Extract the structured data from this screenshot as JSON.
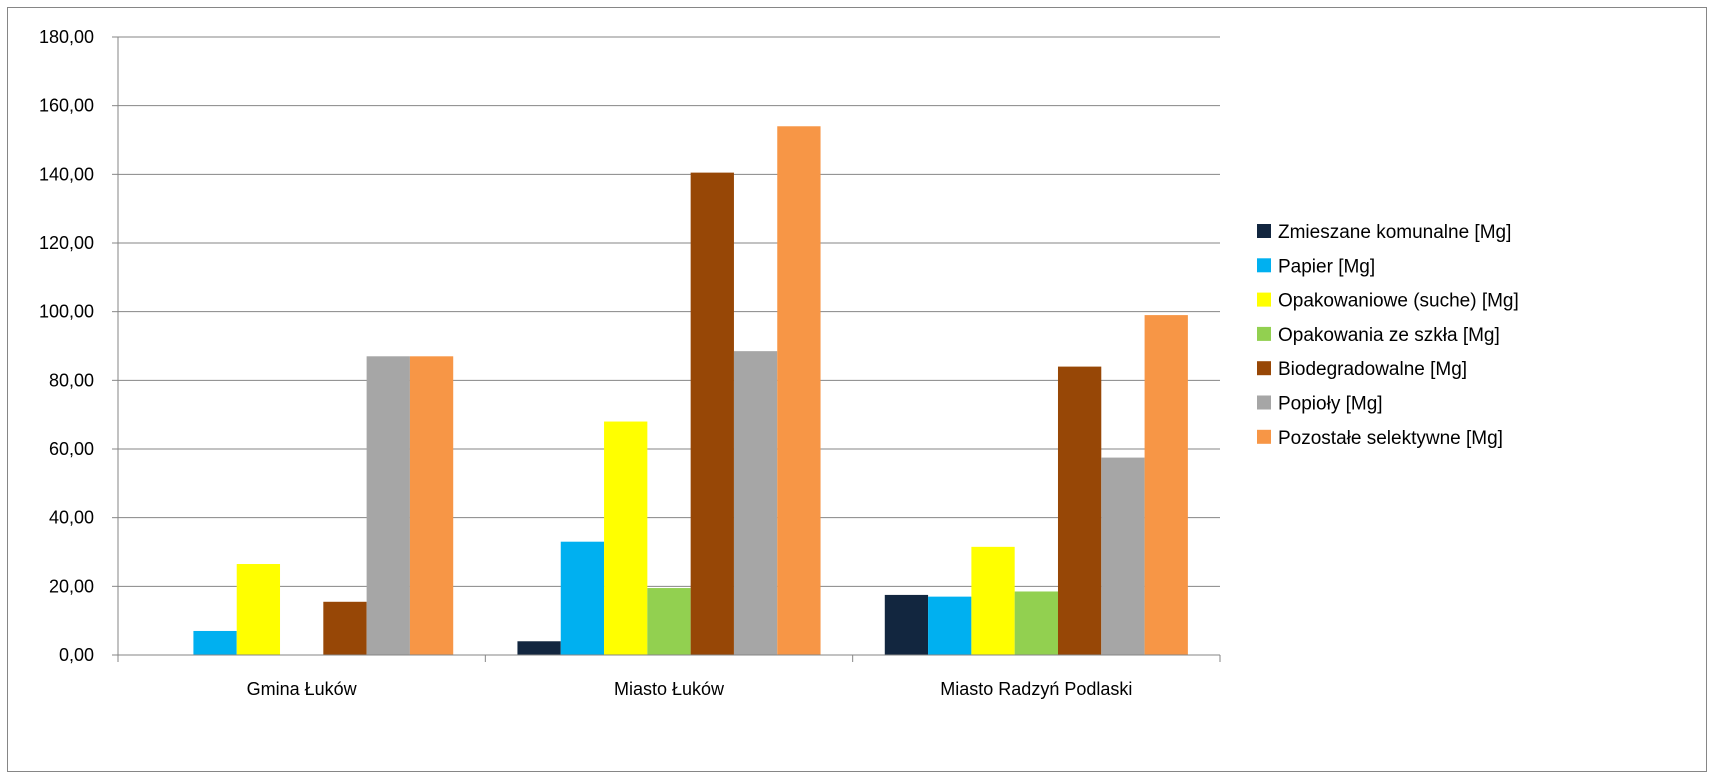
{
  "chart_data": {
    "type": "bar",
    "title": "",
    "xlabel": "",
    "ylabel": "",
    "ylim": [
      0,
      180
    ],
    "y_ticks": [
      "0,00",
      "20,00",
      "40,00",
      "60,00",
      "80,00",
      "100,00",
      "120,00",
      "140,00",
      "160,00",
      "180,00"
    ],
    "y_tick_values": [
      0,
      20,
      40,
      60,
      80,
      100,
      120,
      140,
      160,
      180
    ],
    "grid": true,
    "legend_position": "right",
    "categories": [
      "Gmina Łuków",
      "Miasto Łuków",
      "Miasto Radzyń Podlaski"
    ],
    "series": [
      {
        "name": "Zmieszane komunalne [Mg]",
        "color": "#12263f",
        "values": [
          0,
          4,
          17.5
        ]
      },
      {
        "name": "Papier [Mg]",
        "color": "#00b0f0",
        "values": [
          7,
          33,
          17
        ]
      },
      {
        "name": "Opakowaniowe (suche) [Mg]",
        "color": "#ffff00",
        "values": [
          26.5,
          68,
          31.5
        ]
      },
      {
        "name": "Opakowania ze szkła [Mg]",
        "color": "#92d050",
        "values": [
          0,
          19.5,
          18.5
        ]
      },
      {
        "name": "Biodegradowalne [Mg]",
        "color": "#974706",
        "values": [
          15.5,
          140.5,
          84
        ]
      },
      {
        "name": "Popioły [Mg]",
        "color": "#a6a6a6",
        "values": [
          87,
          88.5,
          57.5
        ]
      },
      {
        "name": "Pozostałe selektywne [Mg]",
        "color": "#f79646",
        "values": [
          87,
          154,
          99
        ]
      }
    ]
  }
}
